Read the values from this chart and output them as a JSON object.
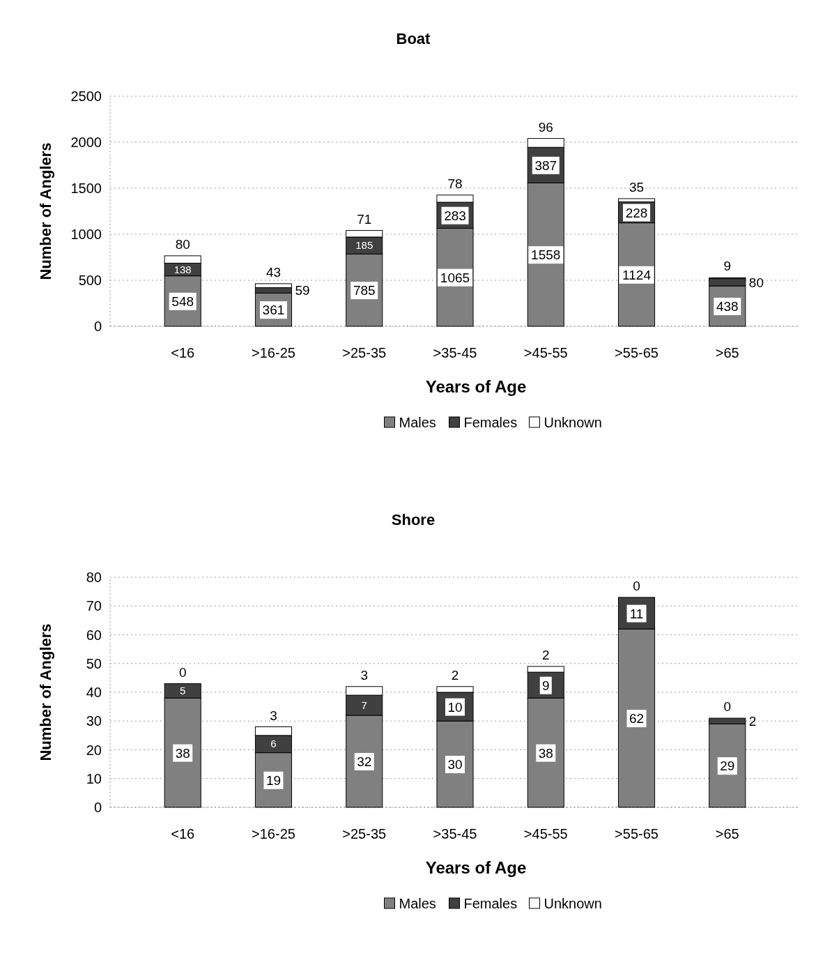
{
  "chart_data": [
    {
      "type": "bar",
      "title": "Boat",
      "xlabel": "Years of Age",
      "ylabel": "Number of Anglers",
      "categories": [
        "<16",
        ">16-25",
        ">25-35",
        ">35-45",
        ">45-55",
        ">55-65",
        ">65"
      ],
      "stacked": true,
      "data_labels": true,
      "grid": "y",
      "legend": "bottom",
      "ylim": [
        0,
        2500
      ],
      "yticks": [
        0,
        500,
        1000,
        1500,
        2000,
        2500
      ],
      "series": [
        {
          "name": "Males",
          "color": "#808080",
          "values": [
            548,
            361,
            785,
            1065,
            1558,
            1124,
            438
          ]
        },
        {
          "name": "Females",
          "color": "#404040",
          "values": [
            138,
            59,
            185,
            283,
            387,
            228,
            80
          ]
        },
        {
          "name": "Unknown",
          "color": "#ffffff",
          "values": [
            80,
            43,
            71,
            78,
            96,
            35,
            9
          ]
        }
      ]
    },
    {
      "type": "bar",
      "title": "Shore",
      "xlabel": "Years of Age",
      "ylabel": "Number of Anglers",
      "categories": [
        "<16",
        ">16-25",
        ">25-35",
        ">35-45",
        ">45-55",
        ">55-65",
        ">65"
      ],
      "stacked": true,
      "data_labels": true,
      "grid": "y",
      "legend": "bottom",
      "ylim": [
        0,
        80
      ],
      "yticks": [
        0,
        10,
        20,
        30,
        40,
        50,
        60,
        70,
        80
      ],
      "series": [
        {
          "name": "Males",
          "color": "#808080",
          "values": [
            38,
            19,
            32,
            30,
            38,
            62,
            29
          ]
        },
        {
          "name": "Females",
          "color": "#404040",
          "values": [
            5,
            6,
            7,
            10,
            9,
            11,
            2
          ]
        },
        {
          "name": "Unknown",
          "color": "#ffffff",
          "values": [
            0,
            3,
            3,
            2,
            2,
            0,
            0
          ]
        }
      ]
    }
  ]
}
